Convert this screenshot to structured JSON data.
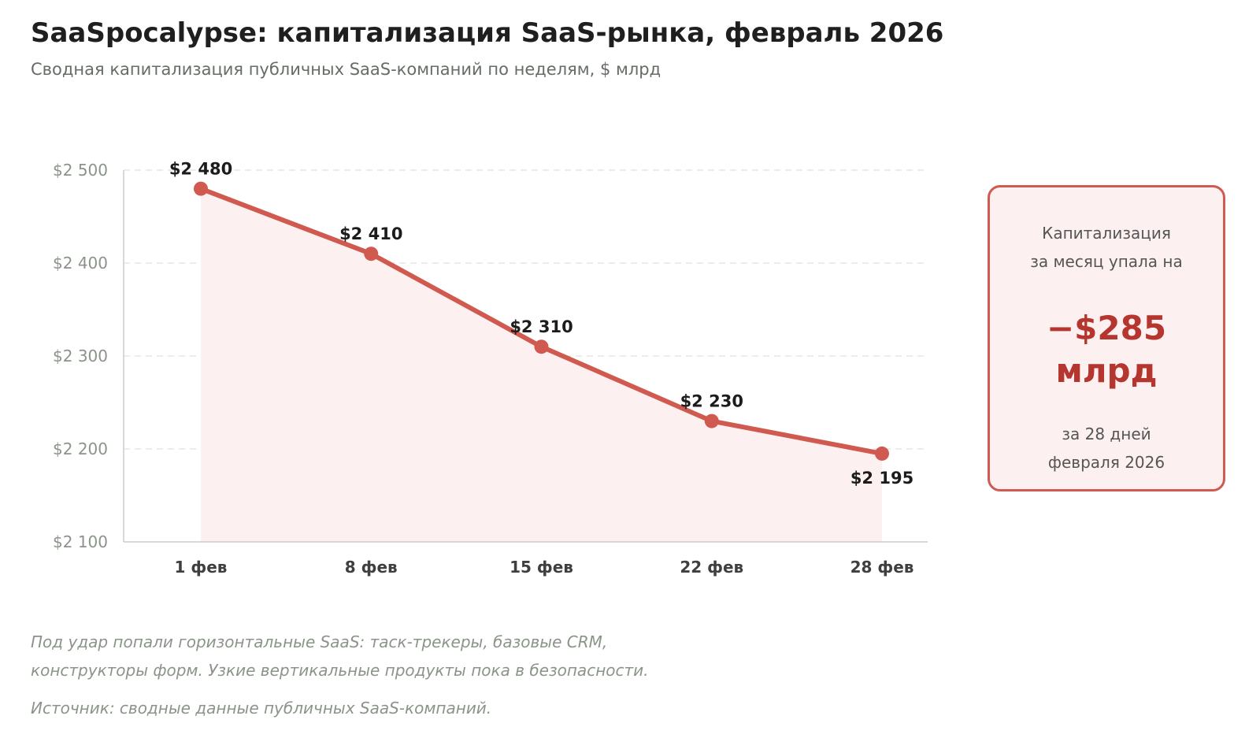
{
  "header": {
    "title": "SaaSpocalypse: капитализация SaaS-рынка, февраль 2026",
    "subtitle": "Сводная капитализация публичных SaaS-компаний по неделям, $ млрд"
  },
  "chart_data": {
    "type": "area",
    "categories": [
      "1 фев",
      "8 фев",
      "15 фев",
      "22 фев",
      "28 фев"
    ],
    "series": [
      {
        "values": [
          2480,
          2410,
          2310,
          2230,
          2195
        ],
        "value_labels": [
          "$2 480",
          "$2 410",
          "$2 310",
          "$2 230",
          "$2 195"
        ]
      }
    ],
    "ylim": [
      2100,
      2500
    ],
    "y_ticks": [
      2100,
      2200,
      2300,
      2400,
      2500
    ],
    "y_tick_labels": [
      "$2 100",
      "$2 200",
      "$2 300",
      "$2 400",
      "$2 500"
    ],
    "grid": true,
    "colors": {
      "line": "#d05a50",
      "fill": "#fcf0f0",
      "grid": "#e6e6e6",
      "axis": "#c9ccd1"
    }
  },
  "callout": {
    "top_line1": "Капитализация",
    "top_line2": "за месяц упала на",
    "value_line1": "−$285",
    "value_line2": "млрд",
    "bottom_line1": "за 28 дней",
    "bottom_line2": "февраля 2026"
  },
  "footer": {
    "note_line1": "Под удар попали горизонтальные SaaS: таск-трекеры, базовые CRM,",
    "note_line2": "конструкторы форм. Узкие вертикальные продукты пока в безопасности.",
    "source": "Источник: сводные данные публичных SaaS-компаний."
  }
}
